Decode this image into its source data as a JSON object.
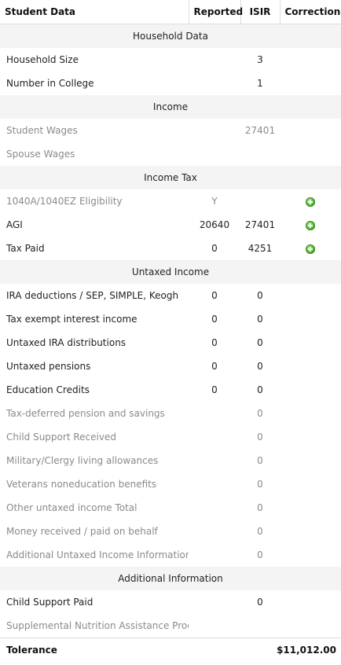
{
  "header": {
    "student_data": "Student Data",
    "reported": "Reported",
    "isir": "ISIR",
    "correction": "Correction"
  },
  "sections": {
    "household": "Household Data",
    "income": "Income",
    "income_tax": "Income Tax",
    "untaxed": "Untaxed Income",
    "additional": "Additional Information"
  },
  "rows": {
    "household_size": {
      "label": "Household Size",
      "reported": "",
      "isir": "3"
    },
    "number_in_college": {
      "label": "Number in College",
      "reported": "",
      "isir": "1"
    },
    "student_wages": {
      "label": "Student Wages",
      "reported": "",
      "isir": "27401"
    },
    "spouse_wages": {
      "label": "Spouse Wages",
      "reported": "",
      "isir": ""
    },
    "eligibility": {
      "label": "1040A/1040EZ Eligibility",
      "reported": "Y",
      "isir": ""
    },
    "agi": {
      "label": "AGI",
      "reported": "20640",
      "isir": "27401"
    },
    "tax_paid": {
      "label": "Tax Paid",
      "reported": "0",
      "isir": "4251"
    },
    "ira_deductions": {
      "label": "IRA deductions / SEP, SIMPLE, Keogh",
      "reported": "0",
      "isir": "0"
    },
    "tax_exempt_interest": {
      "label": "Tax exempt interest income",
      "reported": "0",
      "isir": "0"
    },
    "untaxed_ira": {
      "label": "Untaxed IRA distributions",
      "reported": "0",
      "isir": "0"
    },
    "untaxed_pensions": {
      "label": "Untaxed pensions",
      "reported": "0",
      "isir": "0"
    },
    "education_credits": {
      "label": "Education Credits",
      "reported": "0",
      "isir": "0"
    },
    "tax_deferred": {
      "label": "Tax-deferred pension and savings",
      "reported": "",
      "isir": "0"
    },
    "child_support_received": {
      "label": "Child Support Received",
      "reported": "",
      "isir": "0"
    },
    "military_clergy": {
      "label": "Military/Clergy living allowances",
      "reported": "",
      "isir": "0"
    },
    "veterans": {
      "label": "Veterans noneducation benefits",
      "reported": "",
      "isir": "0"
    },
    "other_untaxed": {
      "label": "Other untaxed income Total",
      "reported": "",
      "isir": "0"
    },
    "money_received": {
      "label": "Money received / paid on behalf",
      "reported": "",
      "isir": "0"
    },
    "additional_untaxed": {
      "label": "Additional Untaxed Income Information",
      "reported": "",
      "isir": "0"
    },
    "child_support_paid": {
      "label": "Child Support Paid",
      "reported": "",
      "isir": "0"
    },
    "snap": {
      "label": "Supplemental Nutrition Assistance Program",
      "reported": "",
      "isir": ""
    }
  },
  "footer": {
    "label": "Tolerance",
    "amount": "$11,012.00"
  },
  "icons": {
    "add_correction": "add-circle-icon"
  },
  "colors": {
    "section_bg": "#f4f4f4",
    "muted_text": "#8a8a8a",
    "add_icon": "#4bb22c"
  }
}
